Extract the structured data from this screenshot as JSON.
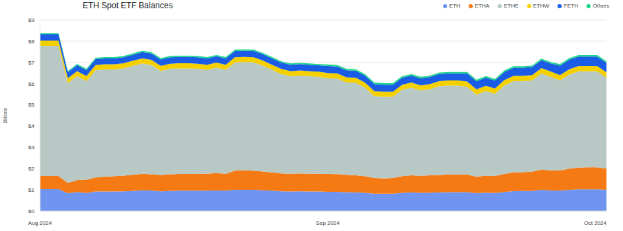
{
  "chart_data": {
    "type": "area",
    "title": "ETH Spot ETF Balances",
    "y_label": "Billions",
    "stacked": true,
    "grid": true,
    "legend": "top-right",
    "categories": [
      "Aug 2024",
      null,
      null,
      null,
      null,
      null,
      null,
      null,
      null,
      null,
      null,
      null,
      null,
      null,
      null,
      null,
      null,
      null,
      null,
      null,
      null,
      null,
      null,
      null,
      null,
      null,
      null,
      null,
      null,
      null,
      null,
      "Sep 2024",
      null,
      null,
      null,
      null,
      null,
      null,
      null,
      null,
      null,
      null,
      null,
      null,
      null,
      null,
      null,
      null,
      null,
      null,
      null,
      null,
      null,
      null,
      null,
      null,
      null,
      null,
      null,
      null,
      null,
      "Oct 2024"
    ],
    "ylim": [
      0,
      9
    ],
    "yticks": [
      {
        "value": 0,
        "label": "$0"
      },
      {
        "value": 1,
        "label": "$1"
      },
      {
        "value": 2,
        "label": "$2"
      },
      {
        "value": 3,
        "label": "$3"
      },
      {
        "value": 4,
        "label": "$4"
      },
      {
        "value": 5,
        "label": "$5"
      },
      {
        "value": 6,
        "label": "$6"
      },
      {
        "value": 7,
        "label": "$7"
      },
      {
        "value": 8,
        "label": "$8"
      },
      {
        "value": 9,
        "label": "$9"
      }
    ],
    "series": [
      {
        "name": "ETH",
        "color": "#6f95f0",
        "values": [
          1.04,
          1.04,
          1.04,
          0.84,
          0.9,
          0.85,
          0.92,
          0.92,
          0.92,
          0.93,
          0.95,
          0.98,
          0.97,
          0.93,
          0.95,
          0.96,
          0.96,
          0.96,
          0.96,
          0.97,
          0.96,
          1.0,
          1.0,
          1.0,
          0.98,
          0.96,
          0.93,
          0.92,
          0.93,
          0.92,
          0.92,
          0.91,
          0.91,
          0.89,
          0.88,
          0.86,
          0.82,
          0.82,
          0.82,
          0.86,
          0.88,
          0.86,
          0.87,
          0.88,
          0.89,
          0.89,
          0.89,
          0.84,
          0.87,
          0.85,
          0.9,
          0.94,
          0.95,
          0.95,
          1.0,
          0.97,
          0.96,
          1.0,
          1.03,
          1.03,
          1.03,
          1.0
        ]
      },
      {
        "name": "ETHA",
        "color": "#f57a14",
        "values": [
          0.61,
          0.61,
          0.61,
          0.49,
          0.56,
          0.62,
          0.67,
          0.7,
          0.72,
          0.74,
          0.76,
          0.78,
          0.76,
          0.77,
          0.78,
          0.79,
          0.79,
          0.8,
          0.8,
          0.82,
          0.8,
          0.9,
          0.92,
          0.9,
          0.88,
          0.86,
          0.84,
          0.84,
          0.84,
          0.84,
          0.84,
          0.84,
          0.83,
          0.82,
          0.8,
          0.78,
          0.73,
          0.72,
          0.73,
          0.78,
          0.8,
          0.8,
          0.81,
          0.82,
          0.83,
          0.83,
          0.83,
          0.78,
          0.8,
          0.8,
          0.85,
          0.88,
          0.88,
          0.9,
          0.95,
          0.95,
          0.95,
          1.0,
          1.02,
          1.03,
          1.03,
          1.0
        ]
      },
      {
        "name": "ETHE",
        "color": "#b8c8c4",
        "values": [
          6.12,
          6.12,
          6.12,
          4.69,
          4.89,
          4.65,
          5.05,
          5.05,
          5.03,
          5.05,
          5.13,
          5.19,
          5.15,
          4.9,
          4.97,
          4.97,
          4.97,
          4.94,
          4.89,
          4.96,
          4.89,
          5.1,
          5.1,
          5.1,
          4.99,
          4.83,
          4.68,
          4.59,
          4.61,
          4.59,
          4.56,
          4.51,
          4.5,
          4.35,
          4.36,
          4.17,
          3.86,
          3.84,
          3.83,
          4.07,
          4.13,
          4.02,
          4.06,
          4.18,
          4.19,
          4.19,
          4.13,
          3.86,
          3.98,
          3.87,
          4.17,
          4.3,
          4.29,
          4.3,
          4.53,
          4.4,
          4.24,
          4.43,
          4.53,
          4.52,
          4.52,
          4.28
        ]
      },
      {
        "name": "ETHW",
        "color": "#f5d000",
        "values": [
          0.26,
          0.26,
          0.26,
          0.24,
          0.24,
          0.24,
          0.24,
          0.24,
          0.24,
          0.24,
          0.24,
          0.24,
          0.24,
          0.24,
          0.24,
          0.24,
          0.24,
          0.24,
          0.24,
          0.24,
          0.24,
          0.24,
          0.24,
          0.24,
          0.24,
          0.24,
          0.24,
          0.24,
          0.24,
          0.24,
          0.24,
          0.24,
          0.24,
          0.24,
          0.24,
          0.24,
          0.24,
          0.24,
          0.24,
          0.24,
          0.24,
          0.24,
          0.24,
          0.24,
          0.24,
          0.24,
          0.25,
          0.25,
          0.25,
          0.25,
          0.25,
          0.25,
          0.25,
          0.25,
          0.25,
          0.25,
          0.25,
          0.25,
          0.25,
          0.25,
          0.25,
          0.25
        ]
      },
      {
        "name": "FETH",
        "color": "#1a5ce6",
        "values": [
          0.29,
          0.29,
          0.29,
          0.28,
          0.28,
          0.28,
          0.28,
          0.28,
          0.28,
          0.28,
          0.28,
          0.3,
          0.3,
          0.3,
          0.3,
          0.3,
          0.3,
          0.3,
          0.3,
          0.3,
          0.3,
          0.3,
          0.3,
          0.3,
          0.3,
          0.3,
          0.3,
          0.3,
          0.3,
          0.3,
          0.3,
          0.33,
          0.33,
          0.33,
          0.33,
          0.33,
          0.33,
          0.33,
          0.33,
          0.33,
          0.33,
          0.33,
          0.33,
          0.33,
          0.33,
          0.33,
          0.38,
          0.38,
          0.38,
          0.38,
          0.38,
          0.38,
          0.38,
          0.38,
          0.38,
          0.38,
          0.45,
          0.45,
          0.45,
          0.45,
          0.45,
          0.45
        ]
      },
      {
        "name": "Others",
        "color": "#19d48a",
        "values": [
          0.06,
          0.06,
          0.06,
          0.06,
          0.06,
          0.06,
          0.06,
          0.06,
          0.06,
          0.06,
          0.06,
          0.06,
          0.06,
          0.06,
          0.06,
          0.06,
          0.06,
          0.06,
          0.06,
          0.06,
          0.06,
          0.06,
          0.06,
          0.06,
          0.06,
          0.06,
          0.06,
          0.06,
          0.06,
          0.06,
          0.06,
          0.07,
          0.07,
          0.07,
          0.07,
          0.07,
          0.07,
          0.07,
          0.07,
          0.07,
          0.07,
          0.07,
          0.07,
          0.07,
          0.07,
          0.07,
          0.07,
          0.07,
          0.07,
          0.07,
          0.07,
          0.07,
          0.07,
          0.07,
          0.07,
          0.07,
          0.07,
          0.07,
          0.07,
          0.07,
          0.07,
          0.07
        ]
      }
    ]
  }
}
